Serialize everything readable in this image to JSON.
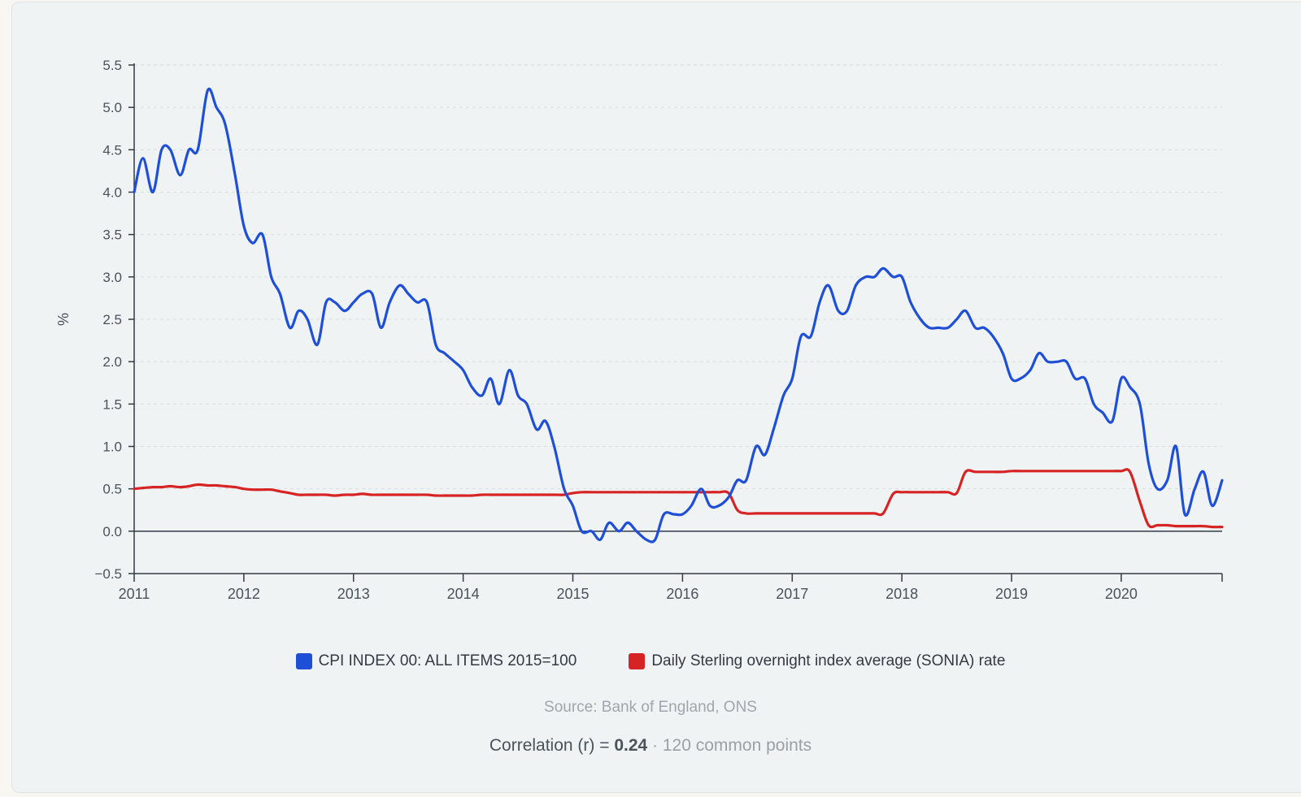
{
  "chart_data": {
    "type": "line",
    "ylabel": "%",
    "ylim": [
      -0.5,
      5.5
    ],
    "xlim": [
      2011.0,
      2020.92
    ],
    "yticks": [
      "5.5",
      "5.0",
      "4.5",
      "4.0",
      "3.5",
      "3.0",
      "2.5",
      "2.0",
      "1.5",
      "1.0",
      "0.5",
      "0.0",
      "−0.5"
    ],
    "ytick_values": [
      5.5,
      5.0,
      4.5,
      4.0,
      3.5,
      3.0,
      2.5,
      2.0,
      1.5,
      1.0,
      0.5,
      0.0,
      -0.5
    ],
    "xticks": [
      "2011",
      "2012",
      "2013",
      "2014",
      "2015",
      "2016",
      "2017",
      "2018",
      "2019",
      "2020"
    ],
    "grid": true,
    "legend_position": "bottom",
    "series": [
      {
        "name": "CPI INDEX 00: ALL ITEMS 2015=100",
        "color": "#1f4fd6",
        "x": [
          2011.0,
          2011.08,
          2011.17,
          2011.25,
          2011.33,
          2011.42,
          2011.5,
          2011.58,
          2011.67,
          2011.75,
          2011.83,
          2011.92,
          2012.0,
          2012.08,
          2012.17,
          2012.25,
          2012.33,
          2012.42,
          2012.5,
          2012.58,
          2012.67,
          2012.75,
          2012.83,
          2012.92,
          2013.0,
          2013.08,
          2013.17,
          2013.25,
          2013.33,
          2013.42,
          2013.5,
          2013.58,
          2013.67,
          2013.75,
          2013.83,
          2013.92,
          2014.0,
          2014.08,
          2014.17,
          2014.25,
          2014.33,
          2014.42,
          2014.5,
          2014.58,
          2014.67,
          2014.75,
          2014.83,
          2014.92,
          2015.0,
          2015.08,
          2015.17,
          2015.25,
          2015.33,
          2015.42,
          2015.5,
          2015.58,
          2015.67,
          2015.75,
          2015.83,
          2015.92,
          2016.0,
          2016.08,
          2016.17,
          2016.25,
          2016.33,
          2016.42,
          2016.5,
          2016.58,
          2016.67,
          2016.75,
          2016.83,
          2016.92,
          2017.0,
          2017.08,
          2017.17,
          2017.25,
          2017.33,
          2017.42,
          2017.5,
          2017.58,
          2017.67,
          2017.75,
          2017.83,
          2017.92,
          2018.0,
          2018.08,
          2018.17,
          2018.25,
          2018.33,
          2018.42,
          2018.5,
          2018.58,
          2018.67,
          2018.75,
          2018.83,
          2018.92,
          2019.0,
          2019.08,
          2019.17,
          2019.25,
          2019.33,
          2019.42,
          2019.5,
          2019.58,
          2019.67,
          2019.75,
          2019.83,
          2019.92,
          2020.0,
          2020.08,
          2020.17,
          2020.25,
          2020.33,
          2020.42,
          2020.5,
          2020.58,
          2020.67,
          2020.75,
          2020.83,
          2020.92
        ],
        "values": [
          4.0,
          4.4,
          4.0,
          4.5,
          4.5,
          4.2,
          4.5,
          4.5,
          5.2,
          5.0,
          4.8,
          4.2,
          3.6,
          3.4,
          3.5,
          3.0,
          2.8,
          2.4,
          2.6,
          2.5,
          2.2,
          2.7,
          2.7,
          2.6,
          2.7,
          2.8,
          2.8,
          2.4,
          2.7,
          2.9,
          2.8,
          2.7,
          2.7,
          2.2,
          2.1,
          2.0,
          1.9,
          1.7,
          1.6,
          1.8,
          1.5,
          1.9,
          1.6,
          1.5,
          1.2,
          1.3,
          1.0,
          0.5,
          0.3,
          0.0,
          0.0,
          -0.1,
          0.1,
          0.0,
          0.1,
          0.0,
          -0.1,
          -0.1,
          0.2,
          0.2,
          0.2,
          0.3,
          0.5,
          0.3,
          0.3,
          0.4,
          0.6,
          0.6,
          1.0,
          0.9,
          1.2,
          1.6,
          1.8,
          2.3,
          2.3,
          2.7,
          2.9,
          2.6,
          2.6,
          2.9,
          3.0,
          3.0,
          3.1,
          3.0,
          3.0,
          2.7,
          2.5,
          2.4,
          2.4,
          2.4,
          2.5,
          2.6,
          2.4,
          2.4,
          2.3,
          2.1,
          1.8,
          1.8,
          1.9,
          2.1,
          2.0,
          2.0,
          2.0,
          1.8,
          1.8,
          1.5,
          1.4,
          1.3,
          1.8,
          1.7,
          1.5,
          0.8,
          0.5,
          0.6,
          1.0,
          0.2,
          0.5,
          0.7,
          0.3,
          0.6
        ]
      },
      {
        "name": "Daily Sterling overnight index average (SONIA) rate",
        "color": "#d62424",
        "x": [
          2011.0,
          2011.08,
          2011.17,
          2011.25,
          2011.33,
          2011.42,
          2011.5,
          2011.58,
          2011.67,
          2011.75,
          2011.83,
          2011.92,
          2012.0,
          2012.08,
          2012.17,
          2012.25,
          2012.33,
          2012.42,
          2012.5,
          2012.58,
          2012.67,
          2012.75,
          2012.83,
          2012.92,
          2013.0,
          2013.08,
          2013.17,
          2013.25,
          2013.33,
          2013.42,
          2013.5,
          2013.58,
          2013.67,
          2013.75,
          2013.83,
          2013.92,
          2014.0,
          2014.08,
          2014.17,
          2014.25,
          2014.33,
          2014.42,
          2014.5,
          2014.58,
          2014.67,
          2014.75,
          2014.83,
          2014.92,
          2015.0,
          2015.08,
          2015.17,
          2015.25,
          2015.33,
          2015.42,
          2015.5,
          2015.58,
          2015.67,
          2015.75,
          2015.83,
          2015.92,
          2016.0,
          2016.08,
          2016.17,
          2016.25,
          2016.33,
          2016.42,
          2016.5,
          2016.58,
          2016.67,
          2016.75,
          2016.83,
          2016.92,
          2017.0,
          2017.08,
          2017.17,
          2017.25,
          2017.33,
          2017.42,
          2017.5,
          2017.58,
          2017.67,
          2017.75,
          2017.83,
          2017.92,
          2018.0,
          2018.08,
          2018.17,
          2018.25,
          2018.33,
          2018.42,
          2018.5,
          2018.58,
          2018.67,
          2018.75,
          2018.83,
          2018.92,
          2019.0,
          2019.08,
          2019.17,
          2019.25,
          2019.33,
          2019.42,
          2019.5,
          2019.58,
          2019.67,
          2019.75,
          2019.83,
          2019.92,
          2020.0,
          2020.08,
          2020.17,
          2020.25,
          2020.33,
          2020.42,
          2020.5,
          2020.58,
          2020.67,
          2020.75,
          2020.83,
          2020.92
        ],
        "values": [
          0.5,
          0.51,
          0.52,
          0.52,
          0.53,
          0.52,
          0.53,
          0.55,
          0.54,
          0.54,
          0.53,
          0.52,
          0.5,
          0.49,
          0.49,
          0.49,
          0.47,
          0.45,
          0.43,
          0.43,
          0.43,
          0.43,
          0.42,
          0.43,
          0.43,
          0.44,
          0.43,
          0.43,
          0.43,
          0.43,
          0.43,
          0.43,
          0.43,
          0.42,
          0.42,
          0.42,
          0.42,
          0.42,
          0.43,
          0.43,
          0.43,
          0.43,
          0.43,
          0.43,
          0.43,
          0.43,
          0.43,
          0.43,
          0.45,
          0.46,
          0.46,
          0.46,
          0.46,
          0.46,
          0.46,
          0.46,
          0.46,
          0.46,
          0.46,
          0.46,
          0.46,
          0.46,
          0.46,
          0.46,
          0.46,
          0.45,
          0.25,
          0.21,
          0.21,
          0.21,
          0.21,
          0.21,
          0.21,
          0.21,
          0.21,
          0.21,
          0.21,
          0.21,
          0.21,
          0.21,
          0.21,
          0.21,
          0.21,
          0.44,
          0.46,
          0.46,
          0.46,
          0.46,
          0.46,
          0.46,
          0.45,
          0.7,
          0.7,
          0.7,
          0.7,
          0.7,
          0.71,
          0.71,
          0.71,
          0.71,
          0.71,
          0.71,
          0.71,
          0.71,
          0.71,
          0.71,
          0.71,
          0.71,
          0.71,
          0.7,
          0.35,
          0.07,
          0.07,
          0.07,
          0.06,
          0.06,
          0.06,
          0.06,
          0.05,
          0.05
        ]
      }
    ]
  },
  "legend": [
    {
      "label": "CPI INDEX 00: ALL ITEMS 2015=100",
      "color": "#1f4fd6"
    },
    {
      "label": "Daily Sterling overnight index average (SONIA) rate",
      "color": "#d62424"
    }
  ],
  "footer": {
    "source": "Source: Bank of England, ONS",
    "corr_prefix": "Correlation (r) = ",
    "corr_value": "0.24",
    "corr_suffix": " · 120 common points"
  }
}
